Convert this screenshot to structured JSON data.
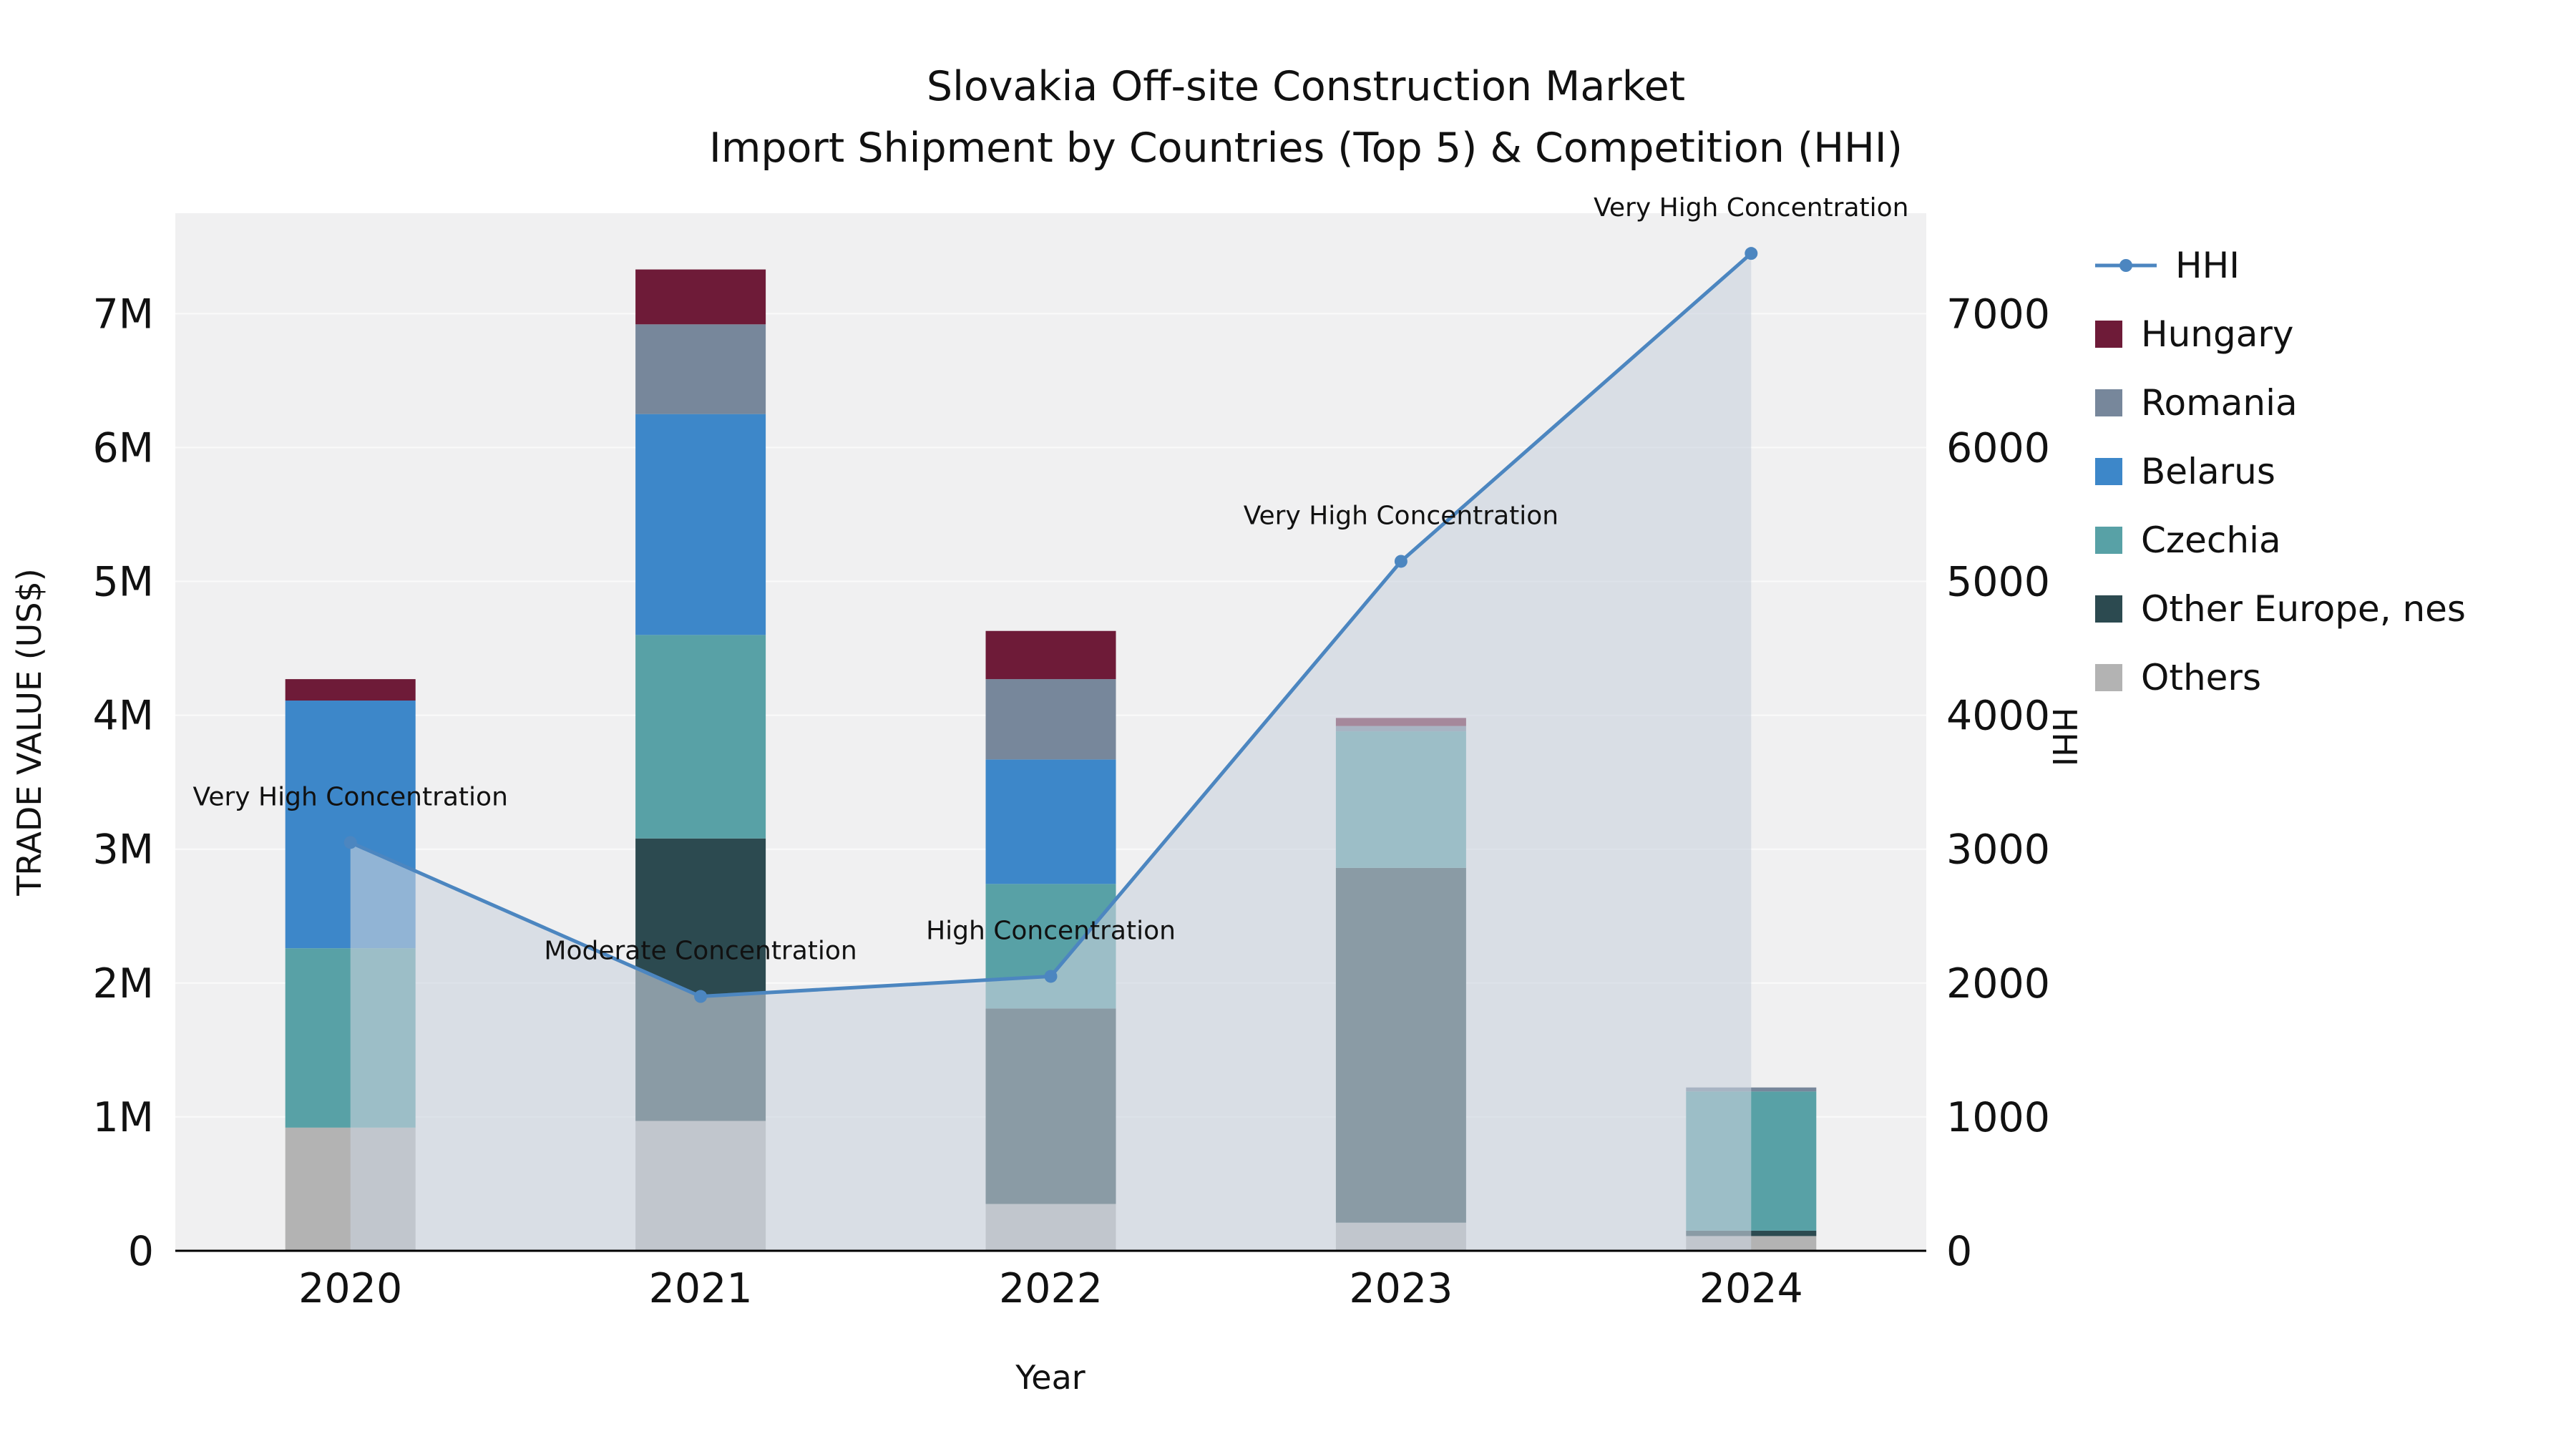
{
  "figure": {
    "title_line1": "Slovakia Off-site Construction Market",
    "title_line2": "Import Shipment by Countries (Top 5) & Competition (HHI)"
  },
  "legend": {
    "items": [
      {
        "id": "hhi",
        "label": "HHI",
        "symbol": "line-marker",
        "color": "#4c86c0"
      },
      {
        "id": "hungary",
        "label": "Hungary",
        "symbol": "square",
        "color": "#6e1b38"
      },
      {
        "id": "romania",
        "label": "Romania",
        "symbol": "square",
        "color": "#77879b"
      },
      {
        "id": "belarus",
        "label": "Belarus",
        "symbol": "square",
        "color": "#3d87c9"
      },
      {
        "id": "czechia",
        "label": "Czechia",
        "symbol": "square",
        "color": "#58a1a6"
      },
      {
        "id": "other-europe-nes",
        "label": "Other Europe, nes",
        "symbol": "square",
        "color": "#2c4a50"
      },
      {
        "id": "others",
        "label": "Others",
        "symbol": "square",
        "color": "#b3b3b3"
      }
    ]
  },
  "chart_data": {
    "type": "bar",
    "variant": "stacked-bars-with-line-on-secondary-axis",
    "title": "Slovakia Off-site Construction Market Import Shipment by Countries (Top 5) & Competition (HHI)",
    "xlabel": "Year",
    "ylabel": "TRADE VALUE (US$)",
    "ylabel_right": "HHI",
    "categories": [
      "2020",
      "2021",
      "2022",
      "2023",
      "2024"
    ],
    "bar_series_bottom_to_top": [
      {
        "name": "Others",
        "color": "#b3b3b3",
        "values": [
          920000,
          970000,
          350000,
          210000,
          110000
        ]
      },
      {
        "name": "Other Europe, nes",
        "color": "#2c4a50",
        "values": [
          0,
          2110000,
          1460000,
          2650000,
          40000
        ]
      },
      {
        "name": "Czechia",
        "color": "#58a1a6",
        "values": [
          1340000,
          1520000,
          930000,
          1020000,
          1040000
        ]
      },
      {
        "name": "Belarus",
        "color": "#3d87c9",
        "values": [
          1850000,
          1650000,
          930000,
          0,
          0
        ]
      },
      {
        "name": "Romania",
        "color": "#77879b",
        "values": [
          0,
          670000,
          600000,
          40000,
          30000
        ]
      },
      {
        "name": "Hungary",
        "color": "#6e1b38",
        "values": [
          160000,
          410000,
          360000,
          60000,
          0
        ]
      }
    ],
    "line_series": {
      "name": "HHI",
      "axis": "right",
      "color": "#4c86c0",
      "area_fill": "#c9d2de",
      "area_opacity": 0.6,
      "values": [
        3050,
        1900,
        2050,
        5150,
        7450
      ]
    },
    "annotations": [
      {
        "category": "2020",
        "text": "Very High Concentration"
      },
      {
        "category": "2021",
        "text": "Moderate Concentration"
      },
      {
        "category": "2022",
        "text": "High Concentration"
      },
      {
        "category": "2023",
        "text": "Very High Concentration"
      },
      {
        "category": "2024",
        "text": "Very High Concentration"
      }
    ],
    "left_axis": {
      "range": [
        0,
        7750000
      ],
      "tick_values": [
        0,
        1000000,
        2000000,
        3000000,
        4000000,
        5000000,
        6000000,
        7000000
      ],
      "tick_labels": [
        "0",
        "1M",
        "2M",
        "3M",
        "4M",
        "5M",
        "6M",
        "7M"
      ]
    },
    "right_axis": {
      "range": [
        0,
        7750
      ],
      "tick_values": [
        0,
        1000,
        2000,
        3000,
        4000,
        5000,
        6000,
        7000
      ],
      "tick_labels": [
        "0",
        "1000",
        "2000",
        "3000",
        "4000",
        "5000",
        "6000",
        "7000"
      ]
    },
    "plot_bg": "#f0f0f1",
    "grid_color": "#fafafa"
  }
}
